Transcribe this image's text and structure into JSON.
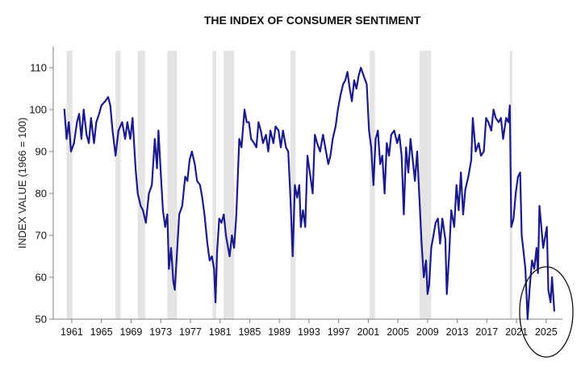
{
  "chart_data": {
    "type": "line",
    "title": "THE INDEX OF CONSUMER SENTIMENT",
    "xlabel": "",
    "ylabel": "INDEX VALUE (1966 = 100)",
    "ylim": [
      50,
      115
    ],
    "xlim": [
      1958.5,
      2027.2
    ],
    "yticks": [
      50,
      60,
      70,
      80,
      90,
      100,
      110
    ],
    "xticks": [
      1961,
      1965,
      1969,
      1973,
      1977,
      1981,
      1985,
      1989,
      1993,
      1997,
      2001,
      2005,
      2009,
      2013,
      2017,
      2021,
      2025
    ],
    "grid": false,
    "line_color": "#1a1a8c",
    "recession_color": "#e4e4e4",
    "recessions": [
      [
        1960.3,
        1961.1
      ],
      [
        1966.9,
        1967.6
      ],
      [
        1969.9,
        1970.9
      ],
      [
        1973.9,
        1975.2
      ],
      [
        1980.0,
        1980.5
      ],
      [
        1981.5,
        1982.9
      ],
      [
        1990.5,
        1991.2
      ],
      [
        2001.2,
        2001.9
      ],
      [
        2007.9,
        2009.5
      ],
      [
        2020.1,
        2020.4
      ]
    ],
    "series": [
      {
        "values": [
          [
            1960.0,
            100
          ],
          [
            1960.3,
            93
          ],
          [
            1960.6,
            97
          ],
          [
            1960.9,
            90
          ],
          [
            1961.3,
            92
          ],
          [
            1961.7,
            97
          ],
          [
            1962.0,
            99
          ],
          [
            1962.3,
            93
          ],
          [
            1962.6,
            100
          ],
          [
            1963.0,
            94
          ],
          [
            1963.3,
            92
          ],
          [
            1963.6,
            98
          ],
          [
            1964.0,
            92
          ],
          [
            1964.3,
            97
          ],
          [
            1964.7,
            99
          ],
          [
            1965.0,
            101
          ],
          [
            1965.5,
            102
          ],
          [
            1965.9,
            103
          ],
          [
            1966.2,
            101
          ],
          [
            1966.5,
            95
          ],
          [
            1966.9,
            89
          ],
          [
            1967.3,
            95
          ],
          [
            1967.8,
            97
          ],
          [
            1968.2,
            93
          ],
          [
            1968.5,
            97
          ],
          [
            1968.9,
            93
          ],
          [
            1969.2,
            98
          ],
          [
            1969.6,
            86
          ],
          [
            1969.9,
            80
          ],
          [
            1970.3,
            77
          ],
          [
            1970.6,
            76
          ],
          [
            1971.0,
            73
          ],
          [
            1971.4,
            80
          ],
          [
            1971.8,
            82
          ],
          [
            1972.2,
            93
          ],
          [
            1972.5,
            86
          ],
          [
            1972.7,
            95
          ],
          [
            1973.0,
            85
          ],
          [
            1973.3,
            76
          ],
          [
            1973.6,
            72
          ],
          [
            1973.9,
            75
          ],
          [
            1974.1,
            62
          ],
          [
            1974.4,
            67
          ],
          [
            1974.7,
            59
          ],
          [
            1974.9,
            57
          ],
          [
            1975.2,
            66
          ],
          [
            1975.5,
            75
          ],
          [
            1975.9,
            77
          ],
          [
            1976.3,
            84
          ],
          [
            1976.6,
            83
          ],
          [
            1976.9,
            88
          ],
          [
            1977.2,
            90
          ],
          [
            1977.6,
            87
          ],
          [
            1977.9,
            83
          ],
          [
            1978.3,
            82
          ],
          [
            1978.6,
            79
          ],
          [
            1978.9,
            75
          ],
          [
            1979.3,
            68
          ],
          [
            1979.6,
            64
          ],
          [
            1979.9,
            65
          ],
          [
            1980.2,
            62
          ],
          [
            1980.4,
            54
          ],
          [
            1980.6,
            66
          ],
          [
            1980.9,
            74
          ],
          [
            1981.2,
            73
          ],
          [
            1981.5,
            75
          ],
          [
            1981.8,
            70
          ],
          [
            1982.0,
            68
          ],
          [
            1982.3,
            65
          ],
          [
            1982.6,
            70
          ],
          [
            1982.9,
            67
          ],
          [
            1983.2,
            75
          ],
          [
            1983.6,
            93
          ],
          [
            1983.9,
            91
          ],
          [
            1984.3,
            100
          ],
          [
            1984.6,
            97
          ],
          [
            1984.9,
            97
          ],
          [
            1985.2,
            93
          ],
          [
            1985.6,
            92
          ],
          [
            1985.9,
            91
          ],
          [
            1986.2,
            97
          ],
          [
            1986.5,
            95
          ],
          [
            1986.8,
            92
          ],
          [
            1987.2,
            94
          ],
          [
            1987.5,
            90
          ],
          [
            1987.8,
            95
          ],
          [
            1988.2,
            92
          ],
          [
            1988.5,
            96
          ],
          [
            1988.9,
            95
          ],
          [
            1989.2,
            91
          ],
          [
            1989.5,
            95
          ],
          [
            1989.9,
            91
          ],
          [
            1990.2,
            90
          ],
          [
            1990.5,
            79
          ],
          [
            1990.8,
            65
          ],
          [
            1991.1,
            82
          ],
          [
            1991.4,
            79
          ],
          [
            1991.7,
            82
          ],
          [
            1991.9,
            72
          ],
          [
            1992.2,
            76
          ],
          [
            1992.5,
            72
          ],
          [
            1992.8,
            89
          ],
          [
            1993.2,
            84
          ],
          [
            1993.5,
            80
          ],
          [
            1993.8,
            94
          ],
          [
            1994.1,
            92
          ],
          [
            1994.5,
            90
          ],
          [
            1994.9,
            94
          ],
          [
            1995.2,
            91
          ],
          [
            1995.6,
            87
          ],
          [
            1995.9,
            89
          ],
          [
            1996.2,
            93
          ],
          [
            1996.6,
            96
          ],
          [
            1996.9,
            100
          ],
          [
            1997.2,
            103
          ],
          [
            1997.6,
            106
          ],
          [
            1997.9,
            107
          ],
          [
            1998.2,
            109
          ],
          [
            1998.5,
            105
          ],
          [
            1998.8,
            102
          ],
          [
            1999.1,
            107
          ],
          [
            1999.4,
            105
          ],
          [
            1999.7,
            108
          ],
          [
            2000.0,
            110
          ],
          [
            2000.4,
            108
          ],
          [
            2000.8,
            106
          ],
          [
            2001.1,
            95
          ],
          [
            2001.4,
            91
          ],
          [
            2001.7,
            82
          ],
          [
            2002.0,
            93
          ],
          [
            2002.3,
            95
          ],
          [
            2002.6,
            87
          ],
          [
            2002.9,
            89
          ],
          [
            2003.2,
            80
          ],
          [
            2003.5,
            92
          ],
          [
            2003.8,
            89
          ],
          [
            2004.1,
            94
          ],
          [
            2004.5,
            95
          ],
          [
            2004.9,
            92
          ],
          [
            2005.2,
            94
          ],
          [
            2005.5,
            89
          ],
          [
            2005.8,
            75
          ],
          [
            2006.1,
            91
          ],
          [
            2006.4,
            85
          ],
          [
            2006.7,
            93
          ],
          [
            2007.0,
            88
          ],
          [
            2007.3,
            83
          ],
          [
            2007.6,
            90
          ],
          [
            2007.9,
            79
          ],
          [
            2008.2,
            68
          ],
          [
            2008.5,
            60
          ],
          [
            2008.8,
            64
          ],
          [
            2009.0,
            56
          ],
          [
            2009.2,
            58
          ],
          [
            2009.5,
            67
          ],
          [
            2009.8,
            70
          ],
          [
            2010.1,
            73
          ],
          [
            2010.4,
            74
          ],
          [
            2010.7,
            68
          ],
          [
            2011.0,
            74
          ],
          [
            2011.4,
            69
          ],
          [
            2011.6,
            56
          ],
          [
            2011.9,
            65
          ],
          [
            2012.2,
            76
          ],
          [
            2012.6,
            72
          ],
          [
            2012.9,
            82
          ],
          [
            2013.2,
            76
          ],
          [
            2013.5,
            85
          ],
          [
            2013.8,
            75
          ],
          [
            2014.1,
            81
          ],
          [
            2014.5,
            84
          ],
          [
            2014.9,
            88
          ],
          [
            2015.1,
            98
          ],
          [
            2015.5,
            90
          ],
          [
            2015.9,
            92
          ],
          [
            2016.2,
            89
          ],
          [
            2016.6,
            90
          ],
          [
            2016.9,
            98
          ],
          [
            2017.2,
            97
          ],
          [
            2017.6,
            95
          ],
          [
            2017.9,
            100
          ],
          [
            2018.2,
            98
          ],
          [
            2018.6,
            97
          ],
          [
            2018.9,
            98
          ],
          [
            2019.2,
            93
          ],
          [
            2019.6,
            98
          ],
          [
            2019.9,
            97
          ],
          [
            2020.1,
            101
          ],
          [
            2020.3,
            72
          ],
          [
            2020.6,
            74
          ],
          [
            2020.9,
            80
          ],
          [
            2021.2,
            84
          ],
          [
            2021.5,
            85
          ],
          [
            2021.7,
            70
          ],
          [
            2021.9,
            67
          ],
          [
            2022.2,
            62
          ],
          [
            2022.5,
            50
          ],
          [
            2022.8,
            58
          ],
          [
            2023.1,
            64
          ],
          [
            2023.4,
            62
          ],
          [
            2023.7,
            67
          ],
          [
            2023.9,
            61
          ],
          [
            2024.1,
            77
          ],
          [
            2024.3,
            73
          ],
          [
            2024.6,
            67
          ],
          [
            2024.9,
            70
          ],
          [
            2025.1,
            72
          ],
          [
            2025.3,
            57
          ],
          [
            2025.6,
            54
          ],
          [
            2025.8,
            60
          ],
          [
            2026.1,
            52
          ]
        ]
      }
    ]
  }
}
